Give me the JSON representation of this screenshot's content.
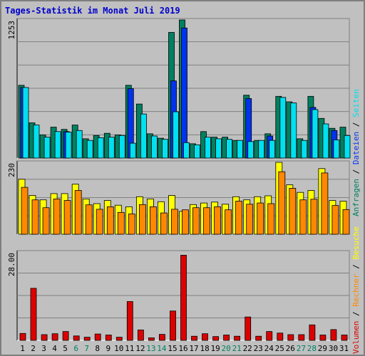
{
  "title": "Tages-Statistik im Monat Juli 2019",
  "colors": {
    "background": "#c0c0c0",
    "title": "#0000cc",
    "anfragen": "#008060",
    "dateien": "#0033ee",
    "seiten": "#00e0f0",
    "besuche": "#ffff00",
    "rechner": "#ff8800",
    "volumen": "#dd0000",
    "weekend_label": "#008060",
    "weekday_label": "#000000",
    "slash": "#000000"
  },
  "legend": {
    "top": [
      "Anfragen",
      "Dateien",
      "Seiten"
    ],
    "bottom": [
      "Volumen",
      "Rechner",
      "Besuche"
    ],
    "separator": "/"
  },
  "chart_data": [
    {
      "type": "bar",
      "name": "hits",
      "max_label": "1253",
      "ylim": [
        0,
        1253
      ],
      "categories": [
        "1",
        "2",
        "3",
        "4",
        "5",
        "6",
        "7",
        "8",
        "9",
        "10",
        "11",
        "12",
        "13",
        "14",
        "15",
        "16",
        "17",
        "18",
        "19",
        "20",
        "21",
        "22",
        "23",
        "24",
        "25",
        "26",
        "27",
        "28",
        "29",
        "30",
        "31"
      ],
      "series": [
        {
          "name": "Anfragen",
          "values": [
            660,
            320,
            210,
            280,
            260,
            300,
            175,
            205,
            225,
            210,
            660,
            490,
            220,
            180,
            1140,
            1253,
            130,
            240,
            190,
            190,
            160,
            570,
            160,
            220,
            560,
            510,
            175,
            560,
            360,
            270,
            280
          ]
        },
        {
          "name": "Dateien",
          "values": [
            640,
            0,
            0,
            0,
            240,
            0,
            0,
            0,
            0,
            0,
            630,
            0,
            0,
            0,
            700,
            1180,
            0,
            0,
            0,
            0,
            0,
            540,
            0,
            200,
            0,
            0,
            0,
            460,
            0,
            250,
            0
          ]
        },
        {
          "name": "Seiten",
          "values": [
            640,
            300,
            190,
            240,
            235,
            250,
            160,
            185,
            190,
            205,
            135,
            400,
            200,
            170,
            420,
            140,
            120,
            190,
            175,
            170,
            160,
            150,
            160,
            160,
            550,
            500,
            160,
            440,
            310,
            165,
            205
          ]
        }
      ]
    },
    {
      "type": "bar",
      "name": "visits",
      "max_label": "230",
      "ylim": [
        0,
        230
      ],
      "categories": [
        "1",
        "2",
        "3",
        "4",
        "5",
        "6",
        "7",
        "8",
        "9",
        "10",
        "11",
        "12",
        "13",
        "14",
        "15",
        "16",
        "17",
        "18",
        "19",
        "20",
        "21",
        "22",
        "23",
        "24",
        "25",
        "26",
        "27",
        "28",
        "29",
        "30",
        "31"
      ],
      "series": [
        {
          "name": "Besuche",
          "values": [
            176,
            124,
            110,
            130,
            130,
            160,
            113,
            98,
            108,
            93,
            88,
            120,
            113,
            104,
            124,
            73,
            95,
            100,
            103,
            96,
            120,
            110,
            120,
            123,
            230,
            158,
            134,
            140,
            210,
            108,
            106
          ]
        },
        {
          "name": "Rechner",
          "values": [
            150,
            110,
            85,
            113,
            108,
            140,
            94,
            80,
            88,
            70,
            65,
            95,
            88,
            68,
            80,
            78,
            85,
            85,
            88,
            78,
            106,
            96,
            100,
            98,
            200,
            147,
            110,
            112,
            196,
            92,
            79
          ]
        }
      ]
    },
    {
      "type": "bar",
      "name": "volume",
      "max_label": "28.00",
      "ylim": [
        0,
        28
      ],
      "categories": [
        "1",
        "2",
        "3",
        "4",
        "5",
        "6",
        "7",
        "8",
        "9",
        "10",
        "11",
        "12",
        "13",
        "14",
        "15",
        "16",
        "17",
        "18",
        "19",
        "20",
        "21",
        "22",
        "23",
        "24",
        "25",
        "26",
        "27",
        "28",
        "29",
        "30",
        "31"
      ],
      "series": [
        {
          "name": "Volumen",
          "values": [
            2.2,
            16.5,
            1.8,
            2.1,
            2.8,
            1.4,
            1.0,
            2.0,
            1.7,
            1.0,
            12.3,
            3.3,
            0.8,
            1.9,
            9.3,
            27.0,
            1.3,
            2.1,
            1.2,
            1.7,
            1.3,
            7.4,
            1.3,
            2.8,
            2.3,
            1.8,
            1.8,
            4.9,
            1.7,
            3.4,
            1.7
          ]
        }
      ]
    }
  ],
  "weekend_days": [
    6,
    7,
    13,
    14,
    20,
    21,
    27,
    28
  ]
}
